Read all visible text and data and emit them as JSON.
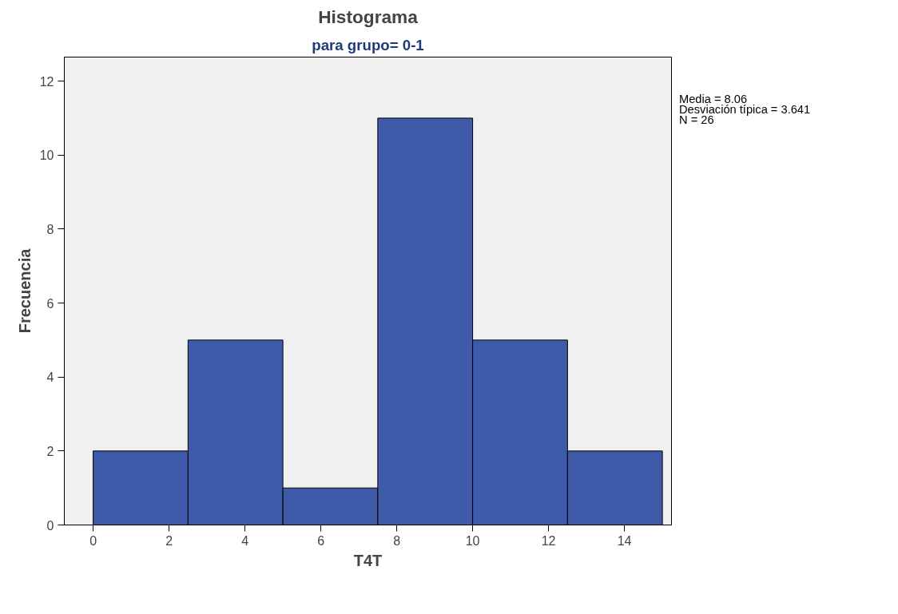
{
  "chart_data": {
    "type": "histogram",
    "title": "Histograma",
    "subtitle": "para grupo= 0-1",
    "xlabel": "T4T",
    "ylabel": "Frecuencia",
    "bins": [
      0,
      2.5,
      5,
      7.5,
      10,
      12.5,
      15
    ],
    "values": [
      2,
      5,
      1,
      11,
      5,
      2
    ],
    "color": "#3f5aa8",
    "xlim": [
      -0.76,
      15.24
    ],
    "ylim": [
      0,
      12.65
    ],
    "xticks": [
      0,
      2,
      4,
      6,
      8,
      10,
      12,
      14
    ],
    "yticks": [
      0,
      2,
      4,
      6,
      8,
      10,
      12
    ],
    "grid": false,
    "annotations": [
      "Media = 8.06",
      "Desviación típica = 3.641",
      "N = 26"
    ]
  }
}
